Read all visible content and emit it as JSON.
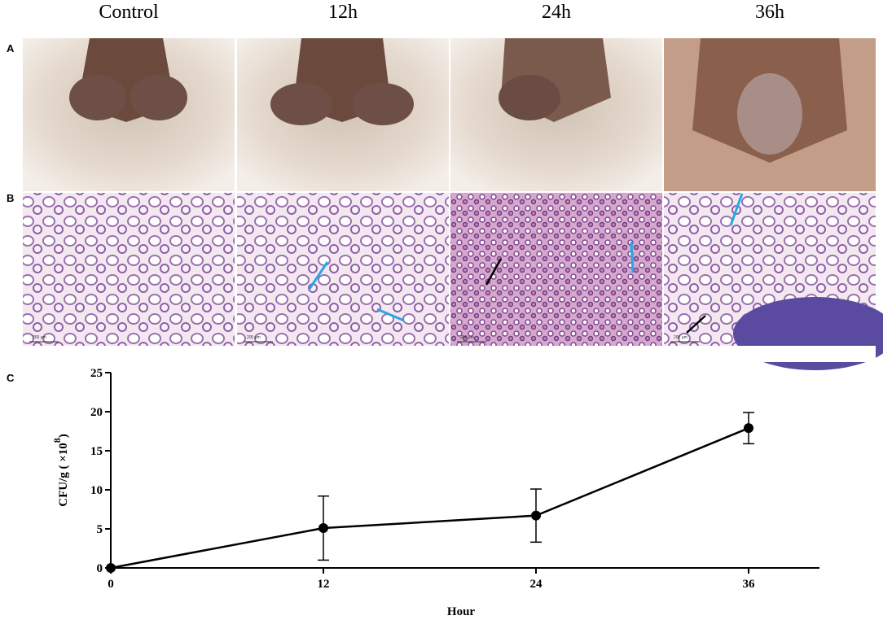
{
  "column_titles": [
    "Control",
    "12h",
    "24h",
    "36h"
  ],
  "panel_labels": [
    "A",
    "B",
    "C"
  ],
  "scale_bar_labels": [
    "200 μm",
    "200 μm",
    "200 μm",
    "200 μm"
  ],
  "chart_data": {
    "type": "line",
    "x": [
      0,
      12,
      24,
      36
    ],
    "values": [
      0,
      5.1,
      6.7,
      17.9
    ],
    "errors": [
      0,
      4.1,
      3.4,
      2.0
    ],
    "color": "#000000",
    "x_label": "Hour",
    "y_label": "CFU/g ( ×10",
    "y_label_exponent": "8",
    "y_label_end": ")",
    "xlim": [
      0,
      40
    ],
    "ylim": [
      0,
      25
    ],
    "xticks": [
      0,
      12,
      24,
      36
    ],
    "yticks": [
      0,
      5,
      10,
      15,
      20,
      25
    ]
  }
}
